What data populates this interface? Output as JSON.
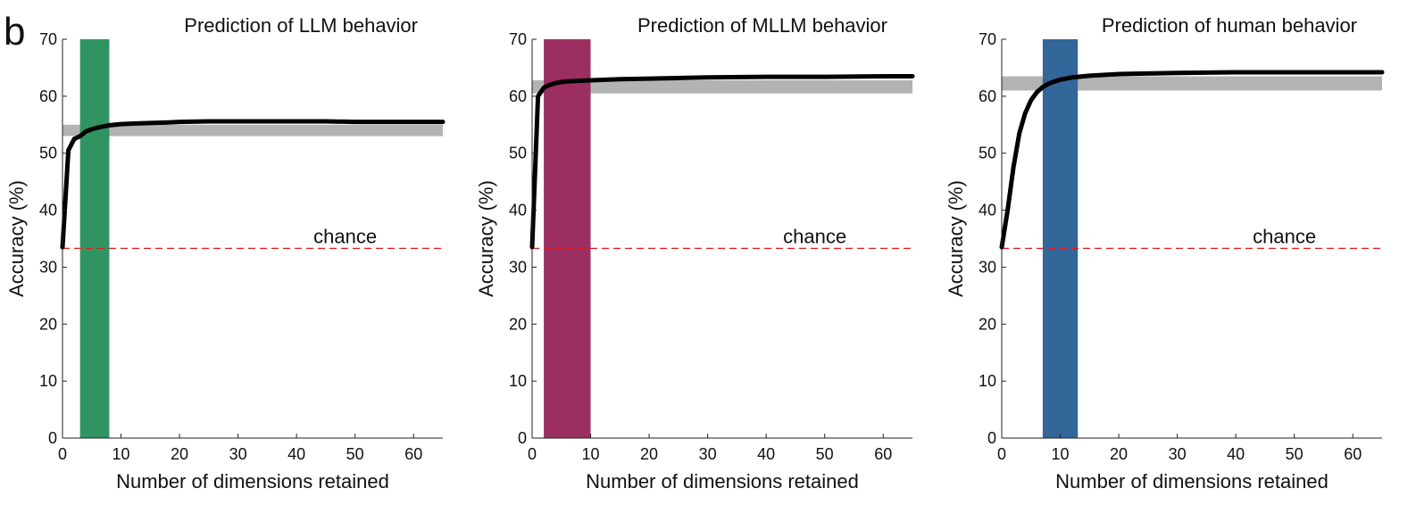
{
  "figure": {
    "panel_label": "b"
  },
  "chart_data": [
    {
      "type": "line",
      "title": "Prediction of LLM behavior",
      "xlabel": "Number of dimensions retained",
      "ylabel": "Accuracy (%)",
      "xlim": [
        0,
        65
      ],
      "ylim": [
        0,
        70
      ],
      "xticks": [
        0,
        10,
        20,
        30,
        40,
        50,
        60
      ],
      "yticks": [
        0,
        10,
        20,
        30,
        40,
        50,
        60,
        70
      ],
      "grid": false,
      "highlight_band": {
        "x_range": [
          3,
          8
        ],
        "color": "#2f9461"
      },
      "reference_band": {
        "y_range": [
          53,
          55
        ],
        "color": "#b3b3b3"
      },
      "chance": {
        "y": 33.3,
        "label": "chance",
        "color": "#e41a1c"
      },
      "line_color": "#000000",
      "series": [
        {
          "x": [
            0,
            1,
            2,
            3,
            4,
            5,
            6,
            7,
            8,
            10,
            12,
            15,
            18,
            20,
            25,
            30,
            35,
            40,
            45,
            50,
            55,
            60,
            65
          ],
          "values": [
            33.5,
            50.5,
            52.5,
            53.0,
            53.8,
            54.2,
            54.5,
            54.7,
            54.9,
            55.1,
            55.2,
            55.3,
            55.4,
            55.5,
            55.6,
            55.6,
            55.6,
            55.6,
            55.6,
            55.5,
            55.5,
            55.5,
            55.5
          ]
        }
      ]
    },
    {
      "type": "line",
      "title": "Prediction of MLLM behavior",
      "xlabel": "Number of dimensions retained",
      "ylabel": "Accuracy (%)",
      "xlim": [
        0,
        65
      ],
      "ylim": [
        0,
        70
      ],
      "xticks": [
        0,
        10,
        20,
        30,
        40,
        50,
        60
      ],
      "yticks": [
        0,
        10,
        20,
        30,
        40,
        50,
        60,
        70
      ],
      "grid": false,
      "highlight_band": {
        "x_range": [
          2,
          10
        ],
        "color": "#9b2f61"
      },
      "reference_band": {
        "y_range": [
          60.5,
          62.8
        ],
        "color": "#b3b3b3"
      },
      "chance": {
        "y": 33.3,
        "label": "chance",
        "color": "#e41a1c"
      },
      "line_color": "#000000",
      "series": [
        {
          "x": [
            0,
            1,
            2,
            3,
            4,
            5,
            6,
            8,
            10,
            15,
            20,
            30,
            40,
            50,
            60,
            65
          ],
          "values": [
            33.5,
            60.0,
            61.5,
            62.0,
            62.3,
            62.5,
            62.6,
            62.7,
            62.8,
            63.0,
            63.1,
            63.3,
            63.4,
            63.4,
            63.5,
            63.5
          ]
        }
      ]
    },
    {
      "type": "line",
      "title": "Prediction of human behavior",
      "xlabel": "Number of dimensions retained",
      "ylabel": "Accuracy (%)",
      "xlim": [
        0,
        65
      ],
      "ylim": [
        0,
        70
      ],
      "xticks": [
        0,
        10,
        20,
        30,
        40,
        50,
        60
      ],
      "yticks": [
        0,
        10,
        20,
        30,
        40,
        50,
        60,
        70
      ],
      "grid": false,
      "highlight_band": {
        "x_range": [
          7,
          13
        ],
        "color": "#336699"
      },
      "reference_band": {
        "y_range": [
          61,
          63.5
        ],
        "color": "#b3b3b3"
      },
      "chance": {
        "y": 33.3,
        "label": "chance",
        "color": "#e41a1c"
      },
      "line_color": "#000000",
      "series": [
        {
          "x": [
            0,
            1,
            2,
            3,
            4,
            5,
            6,
            7,
            8,
            9,
            10,
            12,
            15,
            20,
            30,
            40,
            50,
            60,
            65
          ],
          "values": [
            33.5,
            40.0,
            47.5,
            53.5,
            57.0,
            59.3,
            60.7,
            61.6,
            62.2,
            62.6,
            62.9,
            63.3,
            63.6,
            63.9,
            64.1,
            64.2,
            64.2,
            64.2,
            64.2
          ]
        }
      ]
    }
  ]
}
